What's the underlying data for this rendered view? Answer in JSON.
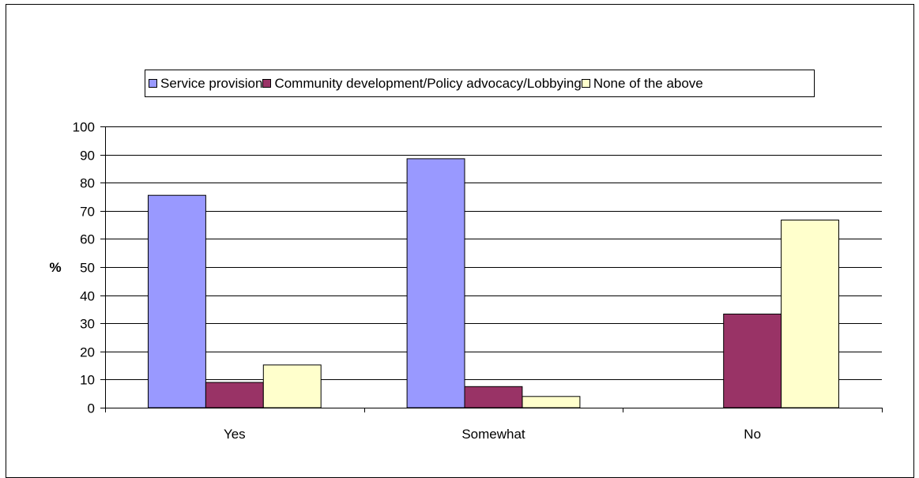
{
  "chart_data": {
    "type": "bar",
    "categories": [
      "Yes",
      "Somewhat",
      "No"
    ],
    "series": [
      {
        "name": "Service provision",
        "color": "#9999FF",
        "values": [
          75.5,
          88.5,
          0
        ]
      },
      {
        "name": "Community development/Policy advocacy/Lobbying",
        "color": "#993366",
        "values": [
          9,
          7.5,
          33.3
        ]
      },
      {
        "name": "None of the above",
        "color": "#FFFFCC",
        "values": [
          15.2,
          4,
          66.7
        ]
      }
    ],
    "ylabel": "%",
    "ylim": [
      0,
      100
    ],
    "yticks": [
      0,
      10,
      20,
      30,
      40,
      50,
      60,
      70,
      80,
      90,
      100
    ],
    "grid": true,
    "legend_position": "top"
  }
}
